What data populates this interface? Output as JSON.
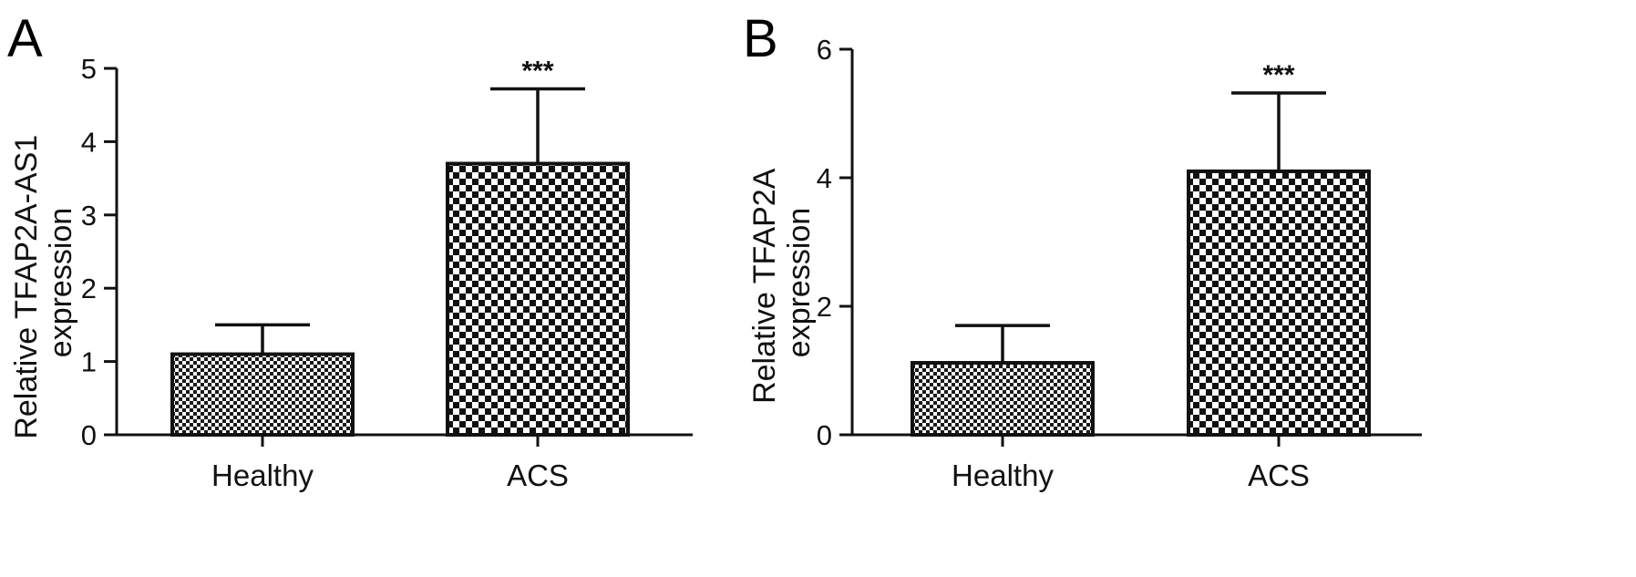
{
  "chart_data": [
    {
      "panel": "A",
      "type": "bar",
      "categories": [
        "Healthy",
        "ACS"
      ],
      "values": [
        1.1,
        3.7
      ],
      "error_upper": [
        1.5,
        4.72
      ],
      "annotations": [
        "",
        "***"
      ],
      "ylabel_lines": [
        "Relative TFAP2A-AS1",
        "expression"
      ],
      "ylim": [
        0,
        5
      ],
      "yticks": [
        0,
        1,
        2,
        3,
        4,
        5
      ],
      "fill_pattern": [
        "fine-checker",
        "coarse-checker"
      ],
      "grid": false
    },
    {
      "panel": "B",
      "type": "bar",
      "categories": [
        "Healthy",
        "ACS"
      ],
      "values": [
        1.12,
        4.1
      ],
      "error_upper": [
        1.7,
        5.32
      ],
      "annotations": [
        "",
        "***"
      ],
      "ylabel_lines": [
        "Relative TFAP2A",
        "expression"
      ],
      "ylim": [
        0,
        6
      ],
      "yticks": [
        0,
        2,
        4,
        6
      ],
      "fill_pattern": [
        "fine-checker",
        "coarse-checker"
      ],
      "grid": false
    }
  ],
  "colors": {
    "ink": "#111111",
    "background": "#ffffff"
  }
}
